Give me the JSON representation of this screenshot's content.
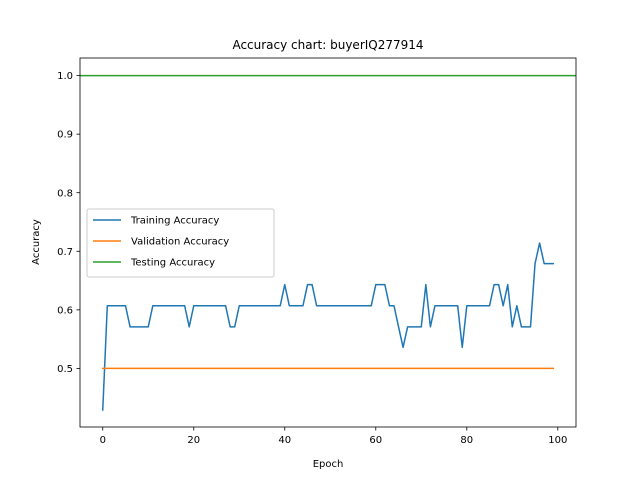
{
  "chart_data": {
    "type": "line",
    "title": "Accuracy chart: buyerIQ277914",
    "xlabel": "Epoch",
    "ylabel": "Accuracy",
    "xlim": [
      -5,
      104
    ],
    "ylim": [
      0.4,
      1.03
    ],
    "xticks": [
      0,
      20,
      40,
      60,
      80,
      100
    ],
    "yticks": [
      0.5,
      0.6,
      0.7,
      0.8,
      0.9,
      1.0
    ],
    "xtick_labels": [
      "0",
      "20",
      "40",
      "60",
      "80",
      "100"
    ],
    "ytick_labels": [
      "0.5",
      "0.6",
      "0.7",
      "0.8",
      "0.9",
      "1.0"
    ],
    "grid": false,
    "legend_position": "center-left",
    "series": [
      {
        "name": "Training Accuracy",
        "color": "#1f77b4",
        "x": [
          0,
          1,
          2,
          3,
          4,
          5,
          6,
          7,
          8,
          9,
          10,
          11,
          12,
          13,
          14,
          15,
          16,
          17,
          18,
          19,
          20,
          21,
          22,
          23,
          24,
          25,
          26,
          27,
          28,
          29,
          30,
          31,
          32,
          33,
          34,
          35,
          36,
          37,
          38,
          39,
          40,
          41,
          42,
          43,
          44,
          45,
          46,
          47,
          48,
          49,
          50,
          51,
          52,
          53,
          54,
          55,
          56,
          57,
          58,
          59,
          60,
          61,
          62,
          63,
          64,
          65,
          66,
          67,
          68,
          69,
          70,
          71,
          72,
          73,
          74,
          75,
          76,
          77,
          78,
          79,
          80,
          81,
          82,
          83,
          84,
          85,
          86,
          87,
          88,
          89,
          90,
          91,
          92,
          93,
          94,
          95,
          96,
          97,
          98,
          99
        ],
        "values": [
          0.429,
          0.607,
          0.607,
          0.607,
          0.607,
          0.607,
          0.571,
          0.571,
          0.571,
          0.571,
          0.571,
          0.607,
          0.607,
          0.607,
          0.607,
          0.607,
          0.607,
          0.607,
          0.607,
          0.571,
          0.607,
          0.607,
          0.607,
          0.607,
          0.607,
          0.607,
          0.607,
          0.607,
          0.571,
          0.571,
          0.607,
          0.607,
          0.607,
          0.607,
          0.607,
          0.607,
          0.607,
          0.607,
          0.607,
          0.607,
          0.643,
          0.607,
          0.607,
          0.607,
          0.607,
          0.643,
          0.643,
          0.607,
          0.607,
          0.607,
          0.607,
          0.607,
          0.607,
          0.607,
          0.607,
          0.607,
          0.607,
          0.607,
          0.607,
          0.607,
          0.643,
          0.643,
          0.643,
          0.607,
          0.607,
          0.571,
          0.536,
          0.571,
          0.571,
          0.571,
          0.571,
          0.643,
          0.571,
          0.607,
          0.607,
          0.607,
          0.607,
          0.607,
          0.607,
          0.536,
          0.607,
          0.607,
          0.607,
          0.607,
          0.607,
          0.607,
          0.643,
          0.643,
          0.607,
          0.643,
          0.571,
          0.607,
          0.571,
          0.571,
          0.571,
          0.679,
          0.714,
          0.679,
          0.679,
          0.679
        ]
      },
      {
        "name": "Validation Accuracy",
        "color": "#ff7f0e",
        "x": [
          0,
          99
        ],
        "values": [
          0.5,
          0.5
        ]
      },
      {
        "name": "Testing Accuracy",
        "color": "#2ca02c",
        "x": [
          -5,
          104
        ],
        "values": [
          1.0,
          1.0
        ]
      }
    ]
  }
}
